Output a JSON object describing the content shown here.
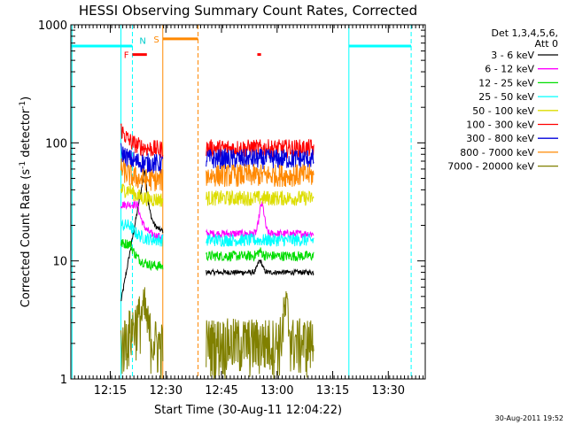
{
  "chart_data": {
    "type": "line",
    "title": "HESSI Observing Summary Count Rates, Corrected",
    "xlabel": "Start Time (30-Aug-11 12:04:22)",
    "ylabel": "Corrected Count Rate (s⁻¹ detector⁻¹)",
    "ylabel_parts": {
      "pre": "Corrected Count Rate (s",
      "exp1": "-1",
      "mid": " detector",
      "exp2": "-1",
      "post": ")"
    },
    "y_scale": "log",
    "ylim": [
      1,
      1000
    ],
    "xlim_minutes": [
      0,
      95.6
    ],
    "x_ticks": [
      {
        "label": "12:15",
        "min": 10.63
      },
      {
        "label": "12:30",
        "min": 25.63
      },
      {
        "label": "12:45",
        "min": 40.63
      },
      {
        "label": "13:00",
        "min": 55.63
      },
      {
        "label": "13:15",
        "min": 70.63
      },
      {
        "label": "13:30",
        "min": 85.63
      }
    ],
    "y_ticks": [
      {
        "label": "1",
        "value": 1
      },
      {
        "label": "10",
        "value": 10
      },
      {
        "label": "100",
        "value": 100
      },
      {
        "label": "1000",
        "value": 1000
      }
    ],
    "legend": {
      "title_lines": [
        "Det 1,3,4,5,6,",
        "Att 0"
      ],
      "placement": "right"
    },
    "series": [
      {
        "name": "3 - 6 keV",
        "color": "#000000",
        "segments": [
          {
            "x0": 13.5,
            "x1": 24.8,
            "start": 4.5,
            "peak": 60,
            "peak_at": 20.0,
            "end": 18
          },
          {
            "x0": 36.5,
            "x1": 65.5,
            "level": 8,
            "bump": 10,
            "bump_at": 51
          }
        ]
      },
      {
        "name": "6 - 12 keV",
        "color": "#ff00ff",
        "segments": [
          {
            "x0": 13.5,
            "x1": 24.8,
            "start": 30,
            "peak": 30,
            "peak_at": 18.0,
            "end": 16
          },
          {
            "x0": 36.5,
            "x1": 65.5,
            "level": 17,
            "bump": 30,
            "bump_at": 51.5
          }
        ]
      },
      {
        "name": "12 - 25 keV",
        "color": "#00dd00",
        "segments": [
          {
            "x0": 13.5,
            "x1": 24.8,
            "start": 14,
            "peak": 14,
            "peak_at": 16.0,
            "end": 9
          },
          {
            "x0": 36.5,
            "x1": 65.5,
            "level": 11,
            "bump": 12,
            "bump_at": 51
          }
        ]
      },
      {
        "name": "25 - 50 keV",
        "color": "#00ffff",
        "segments": [
          {
            "x0": 13.5,
            "x1": 24.8,
            "start": 20,
            "peak": 20,
            "peak_at": 16.0,
            "end": 15
          },
          {
            "x0": 36.5,
            "x1": 65.5,
            "level": 15,
            "bump": 15,
            "bump_at": 51
          }
        ]
      },
      {
        "name": "50 - 100 keV",
        "color": "#dddd00",
        "segments": [
          {
            "x0": 13.5,
            "x1": 24.8,
            "start": 40,
            "peak": 40,
            "peak_at": 16.0,
            "end": 33
          },
          {
            "x0": 36.5,
            "x1": 65.5,
            "level": 34,
            "bump": 34,
            "bump_at": 51
          }
        ]
      },
      {
        "name": "100 - 300 keV",
        "color": "#ff0000",
        "segments": [
          {
            "x0": 13.5,
            "x1": 24.8,
            "start": 130,
            "peak": 130,
            "peak_at": 13.6,
            "end": 88
          },
          {
            "x0": 36.5,
            "x1": 65.5,
            "level": 90,
            "bump": 90,
            "bump_at": 51
          }
        ]
      },
      {
        "name": "300 - 800 keV",
        "color": "#0000dd",
        "segments": [
          {
            "x0": 13.5,
            "x1": 24.8,
            "start": 83,
            "peak": 83,
            "peak_at": 13.6,
            "end": 66
          },
          {
            "x0": 36.5,
            "x1": 65.5,
            "level": 73,
            "bump": 73,
            "bump_at": 51
          }
        ]
      },
      {
        "name": "800 - 7000 keV",
        "color": "#ff8800",
        "segments": [
          {
            "x0": 13.5,
            "x1": 24.8,
            "start": 60,
            "peak": 60,
            "peak_at": 13.6,
            "end": 48
          },
          {
            "x0": 36.5,
            "x1": 65.5,
            "level": 53,
            "bump": 53,
            "bump_at": 51
          }
        ]
      },
      {
        "name": "7000 - 20000 keV",
        "color": "#808000",
        "segments": [
          {
            "x0": 13.5,
            "x1": 24.8,
            "start": 1.5,
            "peak": 3,
            "peak_at": 20,
            "end": 1.5
          },
          {
            "x0": 36.5,
            "x1": 65.5,
            "level": 1.6,
            "bump": 3,
            "bump_at": 58
          }
        ]
      }
    ],
    "observing_flags": [
      {
        "label": "F",
        "color": "#ff0000",
        "x0": 16.6,
        "x1": 20.5,
        "value": 560
      },
      {
        "label": "N",
        "color": "#00cccc",
        "value": 740,
        "label_at": 19.4
      },
      {
        "label": "S",
        "color": "#ff8800",
        "x0": 24.8,
        "x1": 34.3,
        "value": 760
      }
    ],
    "extra_flag_segments": [
      {
        "color": "#ff0000",
        "x0": 50.3,
        "x1": 51.3,
        "value": 560
      }
    ],
    "saa_lines": [
      {
        "color": "#00ffff",
        "x0": 0,
        "x1": 16.6,
        "value": 660
      },
      {
        "color": "#00ffff",
        "x0": 75.0,
        "x1": 91.8,
        "value": 660
      }
    ],
    "vertical_markers": [
      {
        "color": "#00ffff",
        "at": 0.3,
        "style": "solid"
      },
      {
        "color": "#00ffff",
        "at": 16.6,
        "style": "dashed"
      },
      {
        "color": "#00ffff",
        "at": 13.5,
        "style": "solid"
      },
      {
        "color": "#ff8800",
        "at": 24.8,
        "style": "solid"
      },
      {
        "color": "#ff8800",
        "at": 34.3,
        "style": "dashed"
      },
      {
        "color": "#00ffff",
        "at": 75.0,
        "style": "solid"
      },
      {
        "color": "#00ffff",
        "at": 91.8,
        "style": "dashed"
      }
    ]
  },
  "footer": {
    "timestamp": "30-Aug-2011 19:52"
  }
}
